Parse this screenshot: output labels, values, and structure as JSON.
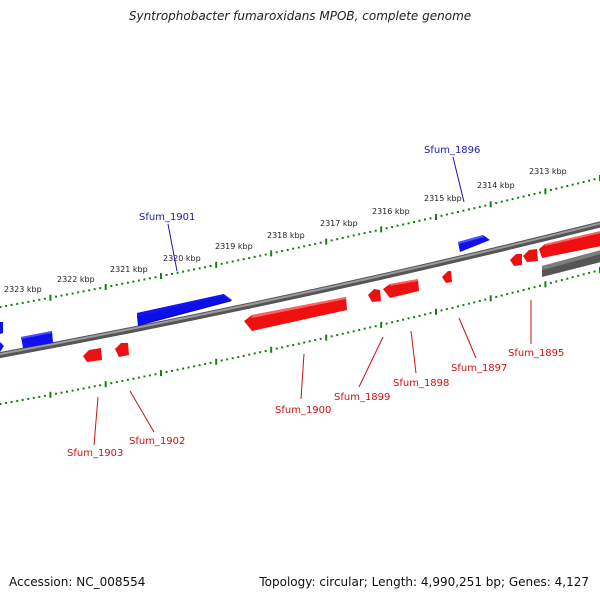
{
  "title": "Syntrophobacter fumaroxidans MPOB, complete genome",
  "accession_text": "Accession: NC_008554",
  "summary_text": "Topology: circular; Length: 4,990,251 bp; Genes: 4,127",
  "colors": {
    "forward_gene": "#1010ee",
    "reverse_gene": "#ee1010",
    "backbone": "#777777",
    "ticks": "#128012",
    "forward_label": "#1a1aaa",
    "reverse_label": "#cc1010"
  },
  "scale": {
    "unit": "kbp",
    "labels": [
      "2313 kbp",
      "2314 kbp",
      "2315 kbp",
      "2316 kbp",
      "2317 kbp",
      "2318 kbp",
      "2319 kbp",
      "2320 kbp",
      "2321 kbp",
      "2322 kbp",
      "2323 kbp"
    ]
  },
  "genes": [
    {
      "id": "Sfum_1895",
      "strand": "reverse",
      "label": "Sfum_1895"
    },
    {
      "id": "Sfum_1896",
      "strand": "forward",
      "label": "Sfum_1896"
    },
    {
      "id": "Sfum_1897",
      "strand": "reverse",
      "label": "Sfum_1897"
    },
    {
      "id": "Sfum_1898",
      "strand": "reverse",
      "label": "Sfum_1898"
    },
    {
      "id": "Sfum_1899",
      "strand": "reverse",
      "label": "Sfum_1899"
    },
    {
      "id": "Sfum_1900",
      "strand": "reverse",
      "label": "Sfum_1900"
    },
    {
      "id": "Sfum_1901",
      "strand": "forward",
      "label": "Sfum_1901"
    },
    {
      "id": "Sfum_1902",
      "strand": "reverse",
      "label": "Sfum_1902"
    },
    {
      "id": "Sfum_1903",
      "strand": "reverse",
      "label": "Sfum_1903"
    }
  ]
}
